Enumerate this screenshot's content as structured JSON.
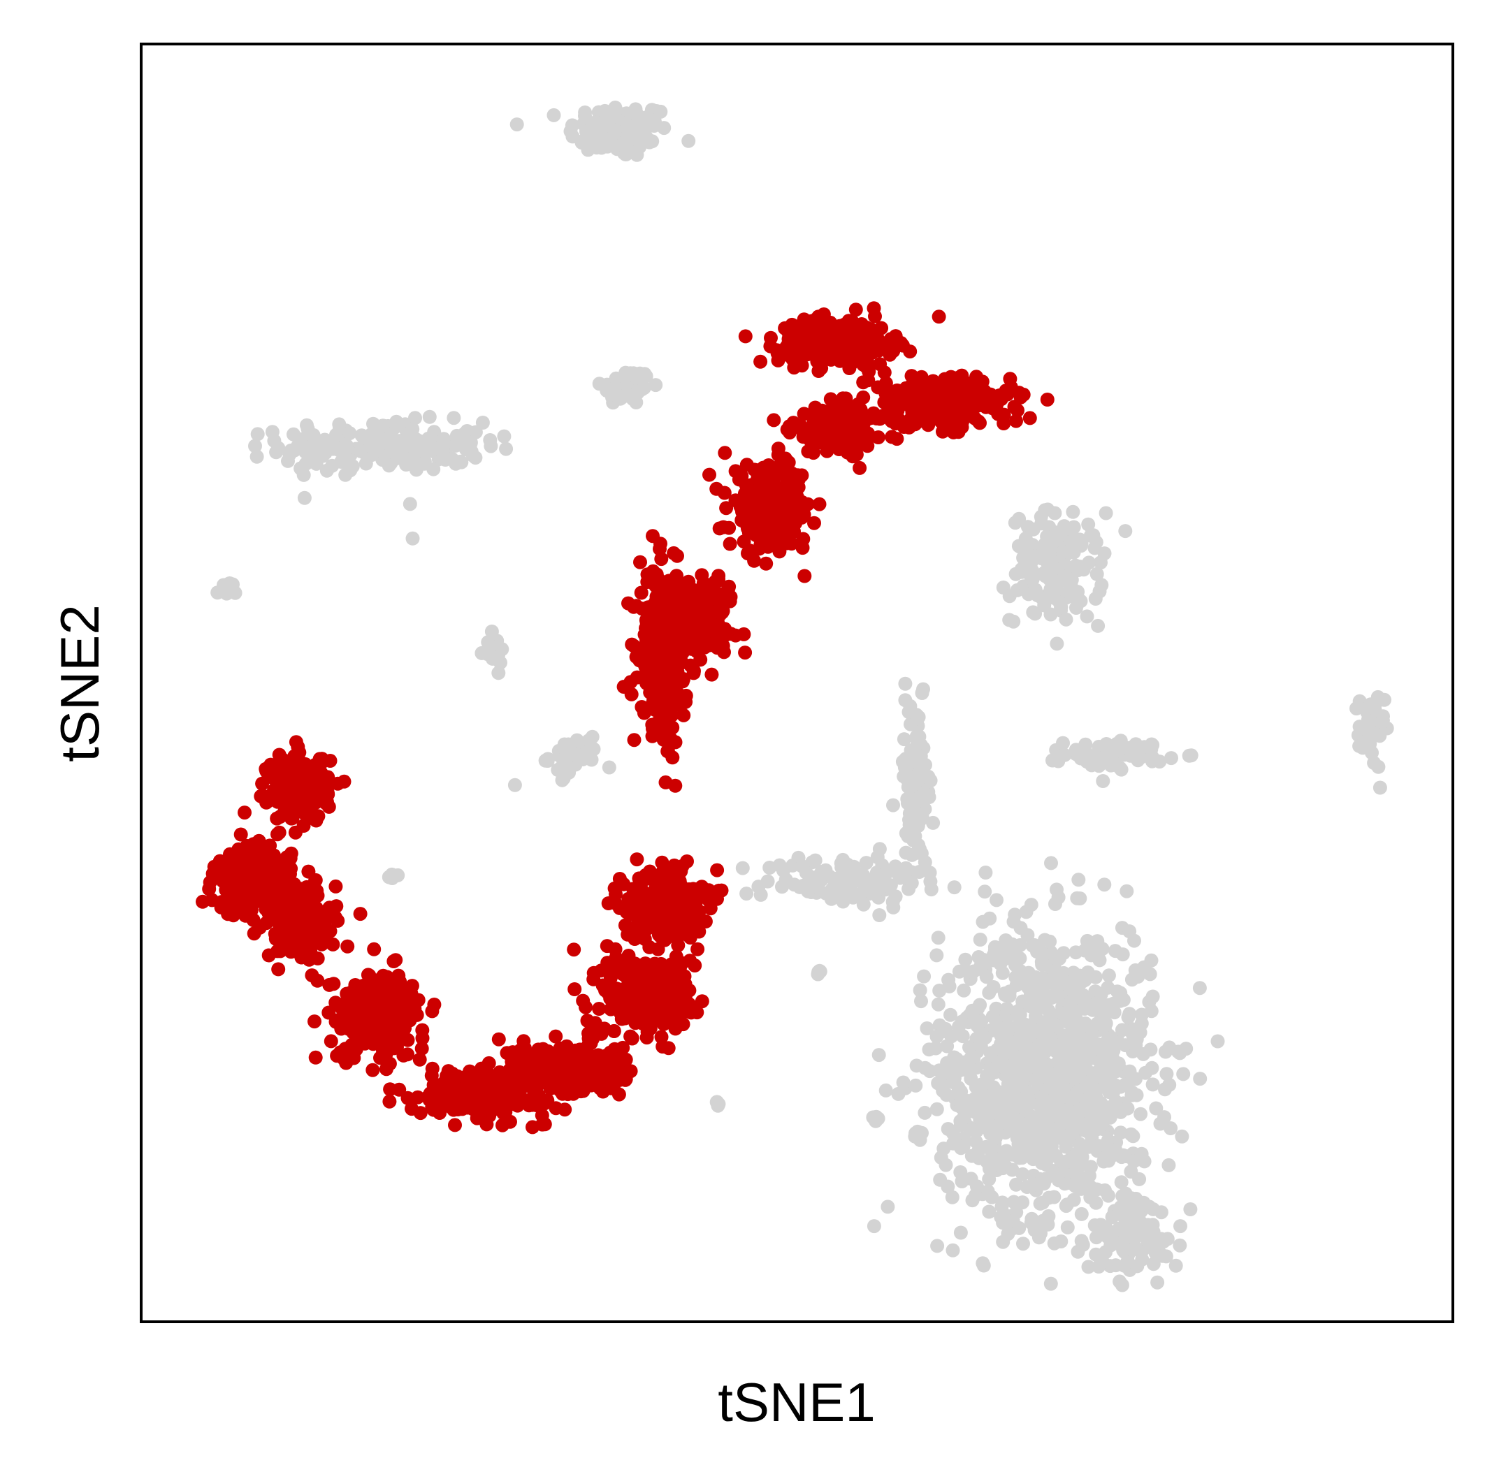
{
  "chart_data": {
    "type": "scatter",
    "title": "",
    "xlabel": "tSNE1",
    "ylabel": "tSNE2",
    "xlim": [
      0,
      100
    ],
    "ylim": [
      0,
      100
    ],
    "x_ticks": false,
    "y_ticks": false,
    "grid": false,
    "legend": "none",
    "colors": {
      "highlight": "#cc0000",
      "background": "#d3d3d3",
      "frame": "#000000"
    },
    "series": [
      {
        "color": "#d3d3d3",
        "clusters": [
          {
            "cx": 36.4,
            "cy": 93.2,
            "rx": 3.2,
            "ry": 1.8,
            "n": 110,
            "points": [
              [
                35.2,
                92.1
              ],
              [
                37.8,
                94.5
              ],
              [
                39.6,
                94.7
              ]
            ]
          },
          {
            "cx": 37.0,
            "cy": 73.2,
            "rx": 1.6,
            "ry": 1.2,
            "n": 55,
            "points": [
              [
                36.0,
                72.6
              ],
              [
                38.5,
                74.0
              ]
            ]
          },
          {
            "cx": 18.5,
            "cy": 68.5,
            "rx": 6.5,
            "ry": 1.6,
            "n": 200,
            "points": [
              [
                14.0,
                68.9
              ],
              [
                26.6,
                69.0
              ],
              [
                20.5,
                64.0
              ],
              [
                20.7,
                61.3
              ]
            ]
          },
          {
            "cx": 6.5,
            "cy": 57.3,
            "rx": 0.6,
            "ry": 0.5,
            "n": 15,
            "points": [
              [
                6.5,
                57.5
              ]
            ]
          },
          {
            "cx": 26.8,
            "cy": 52.5,
            "rx": 0.8,
            "ry": 1.0,
            "n": 20,
            "points": [
              [
                26.9,
                52.0
              ]
            ]
          },
          {
            "cx": 33.0,
            "cy": 44.2,
            "rx": 1.6,
            "ry": 1.2,
            "n": 40,
            "points": [
              [
                32.4,
                44.5
              ],
              [
                28.5,
                42.0
              ]
            ]
          },
          {
            "cx": 69.8,
            "cy": 59.0,
            "rx": 2.9,
            "ry": 3.6,
            "n": 140,
            "points": [
              [
                72.2,
                62.4
              ],
              [
                66.5,
                54.8
              ]
            ]
          },
          {
            "cx": 74.3,
            "cy": 44.4,
            "rx": 3.2,
            "ry": 0.9,
            "n": 70,
            "points": [
              [
                72.0,
                44.2
              ],
              [
                77.0,
                44.8
              ]
            ]
          },
          {
            "cx": 93.8,
            "cy": 46.3,
            "rx": 0.8,
            "ry": 2.5,
            "n": 45,
            "points": [
              [
                93.6,
                47.0
              ]
            ]
          },
          {
            "cx": 59.0,
            "cy": 42.0,
            "rx": 1.2,
            "ry": 5.5,
            "n": 90,
            "points": [
              [
                59.1,
                47.5
              ],
              [
                59.0,
                38.0
              ]
            ]
          },
          {
            "cx": 53.5,
            "cy": 34.5,
            "rx": 5.0,
            "ry": 1.7,
            "n": 110,
            "points": [
              [
                51.0,
                34.8
              ],
              [
                58.3,
                35.5
              ],
              [
                62.0,
                34.0
              ]
            ]
          },
          {
            "cx": 69.0,
            "cy": 19.5,
            "rx": 6.8,
            "ry": 9.5,
            "n": 1100,
            "points": [
              [
                66.0,
                24.5
              ],
              [
                71.5,
                22.0
              ],
              [
                69.0,
                14.5
              ],
              [
                64.5,
                12.5
              ]
            ]
          },
          {
            "cx": 75.9,
            "cy": 7.0,
            "rx": 2.8,
            "ry": 2.6,
            "n": 90,
            "points": [
              [
                77.3,
                6.0
              ]
            ]
          },
          {
            "cx": 18.9,
            "cy": 34.8,
            "rx": 0.4,
            "ry": 0.4,
            "n": 3,
            "points": [
              [
                18.9,
                34.8
              ]
            ]
          },
          {
            "cx": 51.6,
            "cy": 27.2,
            "rx": 0.4,
            "ry": 0.4,
            "n": 3,
            "points": [
              [
                51.6,
                27.2
              ]
            ]
          },
          {
            "cx": 43.9,
            "cy": 17.2,
            "rx": 0.5,
            "ry": 0.4,
            "n": 3,
            "points": [
              [
                43.9,
                17.2
              ]
            ]
          },
          {
            "cx": 55.8,
            "cy": 16.0,
            "rx": 0.5,
            "ry": 0.4,
            "n": 3,
            "points": [
              [
                55.8,
                16.0
              ]
            ]
          },
          {
            "cx": 59.0,
            "cy": 14.5,
            "rx": 0.5,
            "ry": 0.4,
            "n": 3,
            "points": [
              [
                59.0,
                14.5
              ]
            ]
          }
        ]
      },
      {
        "color": "#cc0000",
        "clusters": [
          {
            "cx": 53.0,
            "cy": 76.7,
            "rx": 3.6,
            "ry": 1.5,
            "n": 260,
            "points": [
              [
                48.0,
                77.0
              ],
              [
                51.5,
                78.5
              ],
              [
                57.0,
                76.0
              ]
            ]
          },
          {
            "cx": 60.9,
            "cy": 72.0,
            "rx": 4.5,
            "ry": 1.6,
            "n": 260,
            "points": [
              [
                58.5,
                73.0
              ],
              [
                66.7,
                70.5
              ],
              [
                62.5,
                70.0
              ]
            ]
          },
          {
            "cx": 53.2,
            "cy": 69.8,
            "rx": 3.0,
            "ry": 1.6,
            "n": 180,
            "points": [
              [
                51.0,
                69.0
              ],
              [
                55.0,
                70.8
              ]
            ]
          },
          {
            "cx": 48.0,
            "cy": 63.7,
            "rx": 2.6,
            "ry": 2.6,
            "n": 230,
            "points": [
              [
                47.0,
                66.0
              ],
              [
                49.5,
                63.5
              ],
              [
                44.5,
                68.0
              ]
            ]
          },
          {
            "cx": 39.8,
            "cy": 52.5,
            "rx": 1.5,
            "ry": 5.0,
            "n": 300,
            "points": [
              [
                40.0,
                56.0
              ],
              [
                40.5,
                46.5
              ]
            ]
          },
          {
            "cx": 42.6,
            "cy": 55.5,
            "rx": 2.2,
            "ry": 2.5,
            "n": 150,
            "points": [
              [
                44.0,
                58.0
              ]
            ]
          },
          {
            "cx": 12.0,
            "cy": 41.8,
            "rx": 1.9,
            "ry": 2.2,
            "n": 220,
            "points": [
              [
                12.0,
                44.0
              ],
              [
                11.5,
                40.3
              ]
            ]
          },
          {
            "cx": 8.5,
            "cy": 34.5,
            "rx": 2.4,
            "ry": 2.2,
            "n": 220,
            "points": [
              [
                6.8,
                33.9
              ],
              [
                9.0,
                36.4
              ]
            ]
          },
          {
            "cx": 12.2,
            "cy": 31.4,
            "rx": 2.3,
            "ry": 2.5,
            "n": 180,
            "points": [
              [
                11.5,
                31.8
              ],
              [
                5.4,
                33.0
              ]
            ]
          },
          {
            "cx": 18.0,
            "cy": 24.0,
            "rx": 3.0,
            "ry": 2.8,
            "n": 220,
            "points": [
              [
                16.5,
                25.6
              ],
              [
                19.5,
                21.5
              ]
            ]
          },
          {
            "cx": 26.0,
            "cy": 17.9,
            "rx": 4.0,
            "ry": 1.5,
            "n": 220,
            "points": [
              [
                22.5,
                18.0
              ],
              [
                29.0,
                17.5
              ]
            ]
          },
          {
            "cx": 32.5,
            "cy": 19.8,
            "rx": 3.5,
            "ry": 1.9,
            "n": 260,
            "points": [
              [
                34.3,
                18.5
              ],
              [
                31.0,
                21.0
              ]
            ]
          },
          {
            "cx": 38.8,
            "cy": 25.5,
            "rx": 3.0,
            "ry": 2.8,
            "n": 250,
            "points": [
              [
                37.0,
                26.0
              ],
              [
                40.5,
                24.0
              ]
            ]
          },
          {
            "cx": 39.8,
            "cy": 32.7,
            "rx": 2.5,
            "ry": 2.4,
            "n": 230,
            "points": [
              [
                39.0,
                32.5
              ],
              [
                41.5,
                31.5
              ]
            ]
          }
        ]
      }
    ]
  }
}
